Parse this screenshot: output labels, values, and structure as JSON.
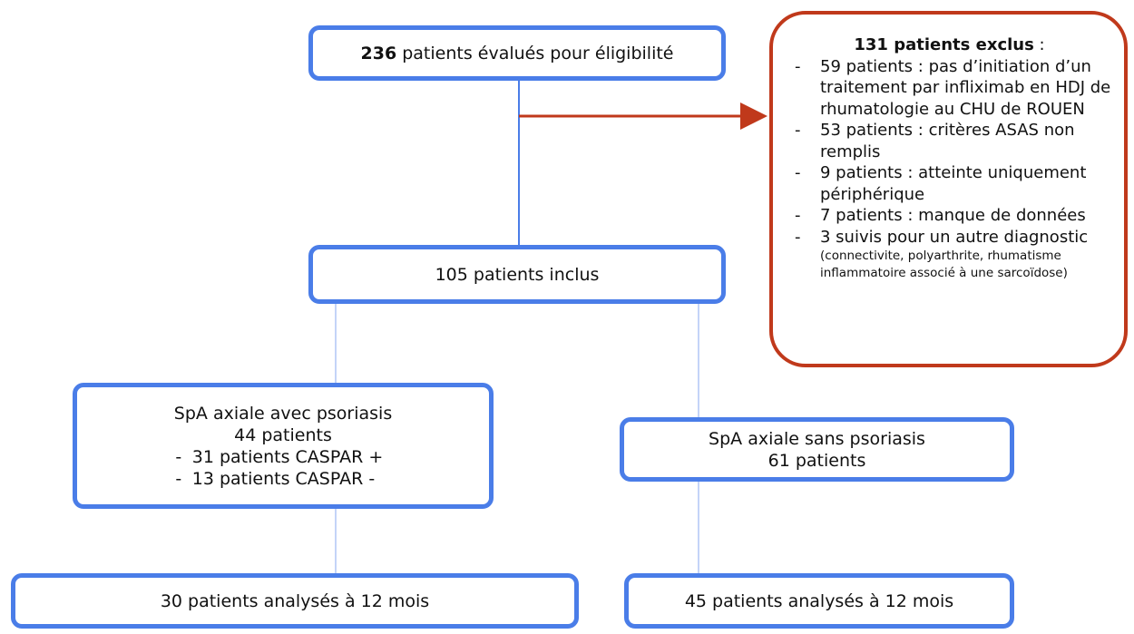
{
  "bullet": "-",
  "screening": {
    "count": "236",
    "text": "patients évalués pour éligibilité"
  },
  "excluded": {
    "title": "131 patients exclus",
    "suffix": " :",
    "items": [
      "59 patients : pas d’initiation d’un traitement par infliximab en HDJ de rhumatologie au CHU de ROUEN",
      "53 patients : critères ASAS non remplis",
      "9 patients : atteinte uniquement périphérique",
      "7 patients : manque de données",
      "3 suivis pour un autre diagnostic"
    ],
    "note": "(connectivite, polyarthrite, rhumatisme inflammatoire associé à une sarcoïdose)"
  },
  "included": "105 patients inclus",
  "with_psoriasis": {
    "title": "SpA axiale avec psoriasis",
    "count": "44 patients",
    "items": [
      "31 patients CASPAR +",
      "13 patients CASPAR -"
    ]
  },
  "without_psoriasis": {
    "title": "SpA axiale sans psoriasis",
    "count": "61 patients"
  },
  "analysed_with": "30 patients analysés à 12 mois",
  "analysed_without": "45 patients analysés à 12 mois"
}
